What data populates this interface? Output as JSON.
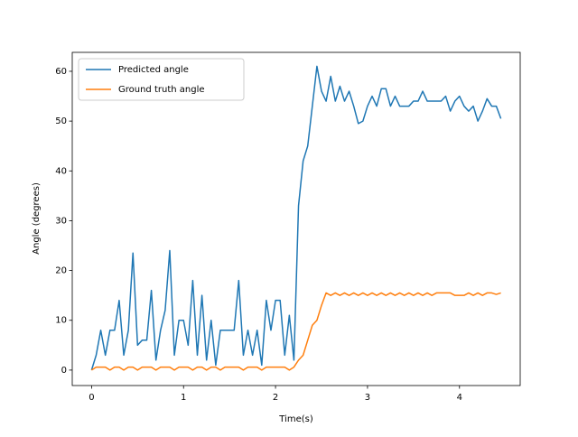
{
  "chart_data": {
    "type": "line",
    "xlabel": "Time(s)",
    "ylabel": "Angle (degrees)",
    "x": [
      0,
      0.05,
      0.1,
      0.15,
      0.2,
      0.25,
      0.3,
      0.35,
      0.4,
      0.45,
      0.5,
      0.55,
      0.6,
      0.65,
      0.7,
      0.75,
      0.8,
      0.85,
      0.9,
      0.95,
      1,
      1.05,
      1.1,
      1.15,
      1.2,
      1.25,
      1.3,
      1.35,
      1.4,
      1.45,
      1.5,
      1.55,
      1.6,
      1.65,
      1.7,
      1.75,
      1.8,
      1.85,
      1.9,
      1.95,
      2,
      2.05,
      2.1,
      2.15,
      2.2,
      2.25,
      2.3,
      2.35,
      2.4,
      2.45,
      2.5,
      2.55,
      2.6,
      2.65,
      2.7,
      2.75,
      2.8,
      2.85,
      2.9,
      2.95,
      3,
      3.05,
      3.1,
      3.15,
      3.2,
      3.25,
      3.3,
      3.35,
      3.4,
      3.45,
      3.5,
      3.55,
      3.6,
      3.65,
      3.7,
      3.75,
      3.8,
      3.85,
      3.9,
      3.95,
      4,
      4.05,
      4.1,
      4.15,
      4.2,
      4.25,
      4.3,
      4.35,
      4.4,
      4.45
    ],
    "series": [
      {
        "name": "Predicted angle",
        "color": "#1f77b4",
        "values": [
          0,
          3,
          8,
          3,
          8,
          8,
          14,
          3,
          8,
          23.5,
          5,
          6,
          6,
          16,
          2,
          8,
          12,
          24,
          3,
          10,
          10,
          5,
          18,
          3,
          15,
          2,
          10,
          1,
          8,
          8,
          8,
          8,
          18,
          3,
          8,
          3,
          8,
          1,
          14,
          8,
          14,
          14,
          3,
          11,
          2,
          33,
          42,
          45,
          53,
          61,
          56,
          54,
          59,
          54,
          57,
          54,
          56,
          53,
          49.5,
          50,
          53,
          55,
          53,
          56.5,
          56.5,
          53,
          55,
          53,
          53,
          53,
          54,
          54,
          56,
          54,
          54,
          54,
          54,
          55,
          52,
          54,
          55,
          53,
          52,
          53,
          50,
          52,
          54.5,
          53,
          53,
          50.5
        ]
      },
      {
        "name": "Ground truth angle",
        "color": "#ff7f0e",
        "values": [
          0,
          0.6,
          0.6,
          0.6,
          0,
          0.6,
          0.6,
          0,
          0.6,
          0.6,
          0,
          0.6,
          0.6,
          0.6,
          0,
          0.6,
          0.6,
          0.6,
          0,
          0.6,
          0.6,
          0.6,
          0,
          0.6,
          0.6,
          0,
          0.6,
          0.6,
          0,
          0.6,
          0.6,
          0.6,
          0.6,
          0,
          0.6,
          0.6,
          0.6,
          0,
          0.6,
          0.6,
          0.6,
          0.6,
          0.6,
          0,
          0.6,
          2,
          3,
          6,
          9,
          10,
          13,
          15.5,
          15,
          15.5,
          15,
          15.5,
          15,
          15.5,
          15,
          15.5,
          15,
          15.5,
          15,
          15.5,
          15,
          15.5,
          15,
          15.5,
          15,
          15.5,
          15,
          15.5,
          15,
          15.5,
          15,
          15.5,
          15.5,
          15.5,
          15.5,
          15,
          15,
          15,
          15.5,
          15,
          15.5,
          15,
          15.5,
          15.5,
          15.2,
          15.5
        ]
      }
    ],
    "xlim": [
      -0.21,
      4.66
    ],
    "ylim": [
      -3.1,
      63.8
    ],
    "xticks": [
      0,
      1,
      2,
      3,
      4
    ],
    "yticks": [
      0,
      10,
      20,
      30,
      40,
      50,
      60
    ],
    "legend": "upper left"
  }
}
